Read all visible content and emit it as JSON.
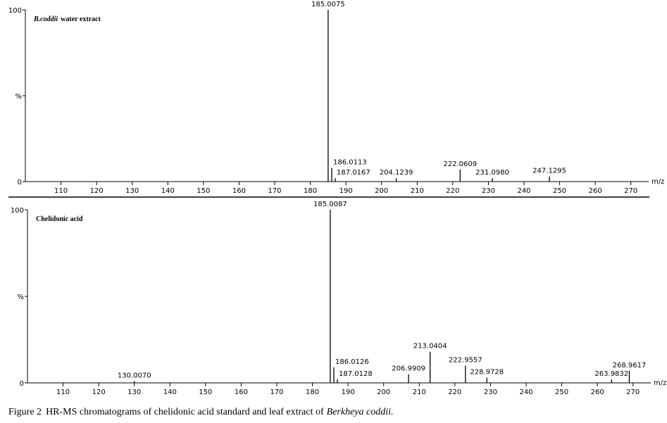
{
  "chart_data": [
    {
      "type": "bar",
      "title": [
        "B.coddii",
        "water extract"
      ],
      "x": [
        185.0075,
        186.0113,
        187.0167,
        204.1239,
        222.0609,
        231.098,
        247.1295
      ],
      "peak_labels": [
        "185.0075",
        "186.0113",
        "187.0167",
        "204.1239",
        "222.0609",
        "231.0980",
        "247.1295"
      ],
      "values": [
        100,
        8,
        2,
        2,
        7,
        2,
        3
      ],
      "color": "#000000",
      "xlabel": "m/z",
      "xlim": [
        100,
        275
      ],
      "xticks": [
        110,
        120,
        130,
        140,
        150,
        160,
        170,
        180,
        190,
        200,
        210,
        220,
        230,
        240,
        250,
        260,
        270
      ],
      "ylim": [
        0,
        100
      ],
      "yticks": [
        0,
        {
          "value": 50,
          "label": "%"
        },
        100
      ]
    },
    {
      "type": "bar",
      "title": [
        "Chelidonic acid"
      ],
      "x": [
        130.007,
        185.0087,
        186.0126,
        187.0128,
        206.9909,
        213.0404,
        222.9557,
        228.9728,
        263.9832,
        268.9617
      ],
      "peak_labels": [
        "130.0070",
        "185.0087",
        "186.0126",
        "187.0128",
        "206.9909",
        "213.0404",
        "222.9557",
        "228.9728",
        "263.9832",
        "268.9617"
      ],
      "values": [
        1,
        100,
        9,
        2,
        5,
        18,
        10,
        3,
        2,
        7
      ],
      "color": "#000000",
      "xlabel": "m/z",
      "xlim": [
        100,
        275
      ],
      "xticks": [
        110,
        120,
        130,
        140,
        150,
        160,
        170,
        180,
        190,
        200,
        210,
        220,
        230,
        240,
        250,
        260,
        270
      ],
      "ylim": [
        0,
        100
      ],
      "yticks": [
        0,
        {
          "value": 50,
          "label": "%"
        },
        100
      ]
    }
  ],
  "caption": {
    "label": "Figure 2",
    "text": "HR-MS chromatograms of chelidonic acid standard and leaf extract of",
    "species": "Berkheya coddii."
  }
}
